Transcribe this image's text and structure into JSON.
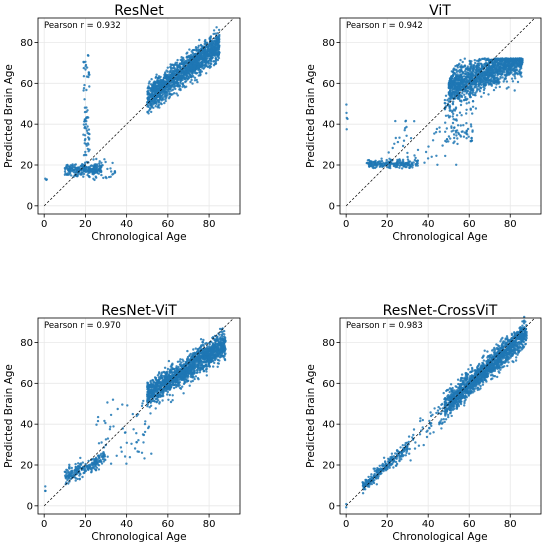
{
  "figure": {
    "xlabel": "Chronological Age",
    "ylabel": "Predicted Brain Age"
  },
  "chart_data": [
    {
      "type": "scatter",
      "title": "ResNet",
      "annotation": "Pearson r = 0.932",
      "xlabel": "Chronological Age",
      "ylabel": "Predicted Brain Age",
      "xlim": [
        -3,
        95
      ],
      "ylim": [
        -4,
        92
      ],
      "xticks": [
        0,
        20,
        40,
        60,
        80
      ],
      "yticks": [
        0,
        20,
        40,
        60,
        80
      ],
      "grid": true,
      "reference_line": "y = x",
      "point_color": "#1f77b4",
      "clusters": [
        {
          "x_range": [
            50,
            85
          ],
          "fit": [
            0.75,
            15
          ],
          "spread": 3.5,
          "n": 1500
        },
        {
          "x_range": [
            10,
            28
          ],
          "fit": [
            0.0,
            17.5
          ],
          "spread": 1.5,
          "n": 220
        },
        {
          "x_range": [
            19,
            22
          ],
          "y_range": [
            20,
            75
          ],
          "n": 70
        },
        {
          "x_range": [
            22,
            35
          ],
          "y_range": [
            13,
            23
          ],
          "n": 40
        },
        {
          "x_range": [
            0,
            1.5
          ],
          "y_range": [
            12,
            14
          ],
          "n": 3
        }
      ]
    },
    {
      "type": "scatter",
      "title": "ViT",
      "annotation": "Pearson r = 0.942",
      "xlabel": "Chronological Age",
      "ylabel": "Predicted Brain Age",
      "xlim": [
        -3,
        95
      ],
      "ylim": [
        -4,
        92
      ],
      "xticks": [
        0,
        20,
        40,
        60,
        80
      ],
      "yticks": [
        0,
        20,
        40,
        60,
        80
      ],
      "grid": true,
      "reference_line": "y = x",
      "point_color": "#1f77b4",
      "clusters": [
        {
          "x_range": [
            50,
            86
          ],
          "fit": [
            0.4,
            38
          ],
          "spread": 4,
          "cap": 71,
          "n": 1400
        },
        {
          "x_range": [
            48,
            62
          ],
          "y_range": [
            30,
            55
          ],
          "n": 120
        },
        {
          "x_range": [
            10,
            35
          ],
          "fit": [
            0.0,
            20.5
          ],
          "spread": 1.0,
          "n": 200
        },
        {
          "x_range": [
            20,
            55
          ],
          "y_range": [
            20,
            42
          ],
          "n": 45
        },
        {
          "x_range": [
            0,
            1
          ],
          "y_range": [
            20,
            53
          ],
          "n": 5
        }
      ]
    },
    {
      "type": "scatter",
      "title": "ResNet-ViT",
      "annotation": "Pearson r = 0.970",
      "xlabel": "Chronological Age",
      "ylabel": "Predicted Brain Age",
      "xlim": [
        -3,
        95
      ],
      "ylim": [
        -4,
        92
      ],
      "xticks": [
        0,
        20,
        40,
        60,
        80
      ],
      "yticks": [
        0,
        20,
        40,
        60,
        80
      ],
      "grid": true,
      "reference_line": "y = x",
      "point_color": "#1f77b4",
      "clusters": [
        {
          "x_range": [
            50,
            88
          ],
          "fit": [
            0.65,
            22
          ],
          "spread": 3.2,
          "n": 1500
        },
        {
          "x_range": [
            10,
            30
          ],
          "fit": [
            0.5,
            9
          ],
          "spread": 2.0,
          "n": 220
        },
        {
          "x_range": [
            25,
            52
          ],
          "y_range": [
            20,
            52
          ],
          "n": 60
        },
        {
          "x_range": [
            0,
            1
          ],
          "y_range": [
            6,
            10
          ],
          "n": 3
        }
      ]
    },
    {
      "type": "scatter",
      "title": "ResNet-CrossViT",
      "annotation": "Pearson r = 0.983",
      "xlabel": "Chronological Age",
      "ylabel": "Predicted Brain Age",
      "xlim": [
        -3,
        95
      ],
      "ylim": [
        -4,
        92
      ],
      "xticks": [
        0,
        20,
        40,
        60,
        80
      ],
      "yticks": [
        0,
        20,
        40,
        60,
        80
      ],
      "grid": true,
      "reference_line": "y = x",
      "point_color": "#1f77b4",
      "clusters": [
        {
          "x_range": [
            48,
            88
          ],
          "fit": [
            0.92,
            4
          ],
          "spread": 3.0,
          "n": 1500
        },
        {
          "x_range": [
            8,
            30
          ],
          "fit": [
            0.9,
            2
          ],
          "spread": 1.6,
          "n": 250
        },
        {
          "x_range": [
            30,
            48
          ],
          "fit": [
            0.95,
            1
          ],
          "spread": 3.5,
          "n": 60
        },
        {
          "x_range": [
            0,
            1
          ],
          "y_range": [
            -1,
            1
          ],
          "n": 2
        }
      ]
    }
  ]
}
